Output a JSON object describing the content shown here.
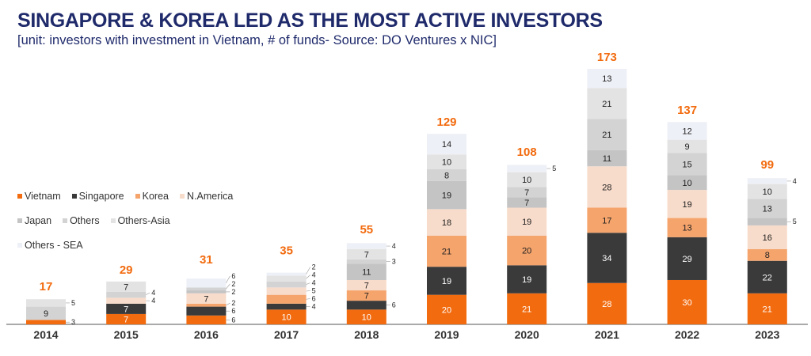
{
  "title": "SINGAPORE & KOREA LED AS THE MOST ACTIVE INVESTORS",
  "subtitle": "[unit: investors with investment in Vietnam, # of funds- Source: DO Ventures x NIC]",
  "chart_data": {
    "type": "bar",
    "stacked": true,
    "legend_position": "left",
    "grid": false,
    "categories": [
      "2014",
      "2015",
      "2016",
      "2017",
      "2018",
      "2019",
      "2020",
      "2021",
      "2022",
      "2023"
    ],
    "totals": [
      17,
      29,
      31,
      35,
      55,
      129,
      108,
      173,
      137,
      99
    ],
    "ylim": [
      0,
      180
    ],
    "series": [
      {
        "name": "Vietnam",
        "color": "#f26b0f",
        "values": [
          3,
          7,
          6,
          10,
          10,
          20,
          21,
          28,
          30,
          21
        ]
      },
      {
        "name": "Singapore",
        "color": "#3a3a3a",
        "values": [
          0,
          7,
          6,
          4,
          6,
          19,
          19,
          34,
          29,
          22
        ]
      },
      {
        "name": "Korea",
        "color": "#f5a46c",
        "values": [
          0,
          0,
          2,
          6,
          7,
          21,
          20,
          17,
          13,
          8
        ]
      },
      {
        "name": "N.America",
        "color": "#f8dccb",
        "values": [
          0,
          4,
          7,
          5,
          7,
          18,
          19,
          28,
          19,
          16
        ]
      },
      {
        "name": "Japan",
        "color": "#c4c4c4",
        "values": [
          0,
          0,
          2,
          0,
          11,
          19,
          7,
          11,
          10,
          5
        ]
      },
      {
        "name": "Others",
        "color": "#d3d3d3",
        "values": [
          9,
          4,
          2,
          4,
          3,
          8,
          7,
          21,
          15,
          13
        ]
      },
      {
        "name": "Others-Asia",
        "color": "#e3e3e3",
        "values": [
          5,
          7,
          0,
          4,
          7,
          10,
          10,
          21,
          9,
          10
        ]
      },
      {
        "name": "Others - SEA",
        "color": "#eef0f7",
        "values": [
          0,
          0,
          6,
          2,
          4,
          14,
          5,
          13,
          12,
          4
        ]
      }
    ]
  }
}
